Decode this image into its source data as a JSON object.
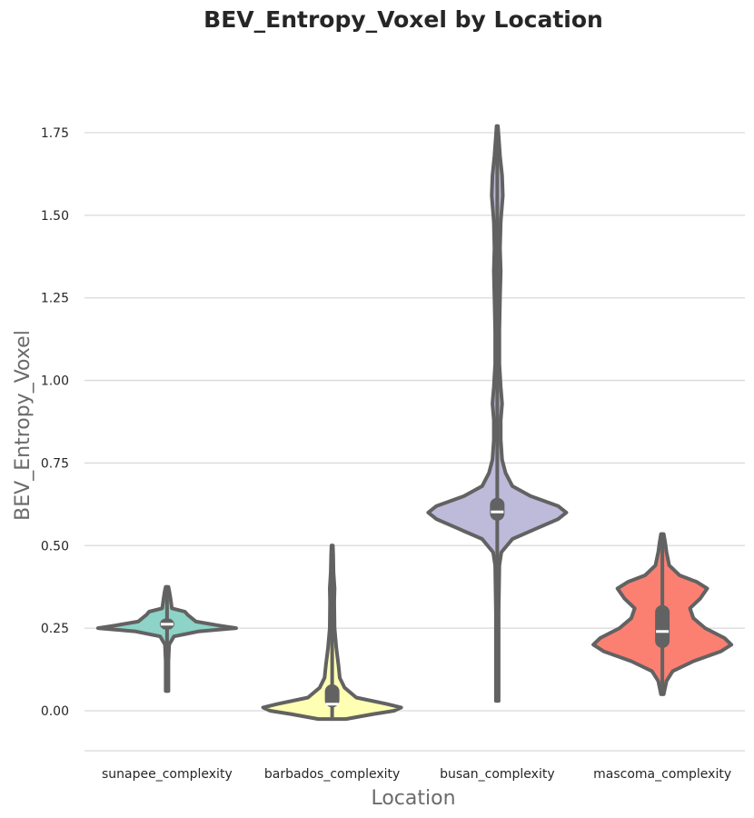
{
  "chart_data": {
    "type": "violin",
    "title": "BEV_Entropy_Voxel by Location",
    "xlabel": "Location",
    "ylabel": "BEV_Entropy_Voxel",
    "ylim": [
      -0.12,
      1.85
    ],
    "yticks": [
      "0.00",
      "0.25",
      "0.50",
      "0.75",
      "1.00",
      "1.25",
      "1.50",
      "1.75"
    ],
    "grid": true,
    "categories": [
      "sunapee_complexity",
      "barbados_complexity",
      "busan_complexity",
      "mascoma_complexity"
    ],
    "series": [
      {
        "category": "sunapee_complexity",
        "color": "#8dd3c7",
        "min": 0.06,
        "q1": 0.245,
        "median": 0.262,
        "q3": 0.28,
        "max": 0.375,
        "profile": [
          [
            0.06,
            0.02
          ],
          [
            0.15,
            0.02
          ],
          [
            0.2,
            0.03
          ],
          [
            0.225,
            0.1
          ],
          [
            0.24,
            0.45
          ],
          [
            0.25,
            1.0
          ],
          [
            0.258,
            0.75
          ],
          [
            0.27,
            0.42
          ],
          [
            0.29,
            0.3
          ],
          [
            0.3,
            0.26
          ],
          [
            0.31,
            0.07
          ],
          [
            0.34,
            0.05
          ],
          [
            0.36,
            0.035
          ],
          [
            0.375,
            0.02
          ]
        ]
      },
      {
        "category": "barbados_complexity",
        "color": "#ffffb3",
        "min": -0.025,
        "q1": 0.01,
        "median": 0.02,
        "q3": 0.08,
        "max": 0.5,
        "profile": [
          [
            -0.025,
            0.2
          ],
          [
            -0.01,
            0.6
          ],
          [
            0.0,
            0.9
          ],
          [
            0.01,
            1.0
          ],
          [
            0.02,
            0.8
          ],
          [
            0.04,
            0.35
          ],
          [
            0.07,
            0.18
          ],
          [
            0.1,
            0.11
          ],
          [
            0.14,
            0.09
          ],
          [
            0.19,
            0.06
          ],
          [
            0.25,
            0.035
          ],
          [
            0.33,
            0.03
          ],
          [
            0.37,
            0.035
          ],
          [
            0.42,
            0.02
          ],
          [
            0.47,
            0.015
          ],
          [
            0.5,
            0.01
          ]
        ]
      },
      {
        "category": "busan_complexity",
        "color": "#bebada",
        "min": 0.03,
        "q1": 0.575,
        "median": 0.602,
        "q3": 0.645,
        "max": 1.77,
        "profile": [
          [
            0.03,
            0.02
          ],
          [
            0.3,
            0.02
          ],
          [
            0.44,
            0.03
          ],
          [
            0.48,
            0.06
          ],
          [
            0.52,
            0.22
          ],
          [
            0.55,
            0.55
          ],
          [
            0.58,
            0.88
          ],
          [
            0.6,
            1.0
          ],
          [
            0.62,
            0.88
          ],
          [
            0.65,
            0.48
          ],
          [
            0.68,
            0.22
          ],
          [
            0.72,
            0.12
          ],
          [
            0.76,
            0.07
          ],
          [
            0.82,
            0.05
          ],
          [
            0.88,
            0.05
          ],
          [
            0.93,
            0.07
          ],
          [
            0.98,
            0.05
          ],
          [
            1.05,
            0.03
          ],
          [
            1.15,
            0.03
          ],
          [
            1.25,
            0.04
          ],
          [
            1.33,
            0.05
          ],
          [
            1.4,
            0.04
          ],
          [
            1.48,
            0.05
          ],
          [
            1.56,
            0.08
          ],
          [
            1.62,
            0.07
          ],
          [
            1.68,
            0.04
          ],
          [
            1.74,
            0.02
          ],
          [
            1.77,
            0.01
          ]
        ]
      },
      {
        "category": "mascoma_complexity",
        "color": "#fb8072",
        "min": 0.05,
        "q1": 0.19,
        "median": 0.24,
        "q3": 0.32,
        "max": 0.535,
        "profile": [
          [
            0.05,
            0.02
          ],
          [
            0.09,
            0.06
          ],
          [
            0.12,
            0.15
          ],
          [
            0.15,
            0.45
          ],
          [
            0.18,
            0.85
          ],
          [
            0.2,
            1.0
          ],
          [
            0.22,
            0.9
          ],
          [
            0.25,
            0.62
          ],
          [
            0.28,
            0.45
          ],
          [
            0.31,
            0.4
          ],
          [
            0.34,
            0.55
          ],
          [
            0.37,
            0.65
          ],
          [
            0.39,
            0.5
          ],
          [
            0.41,
            0.25
          ],
          [
            0.44,
            0.1
          ],
          [
            0.48,
            0.06
          ],
          [
            0.51,
            0.04
          ],
          [
            0.535,
            0.02
          ]
        ]
      }
    ]
  }
}
